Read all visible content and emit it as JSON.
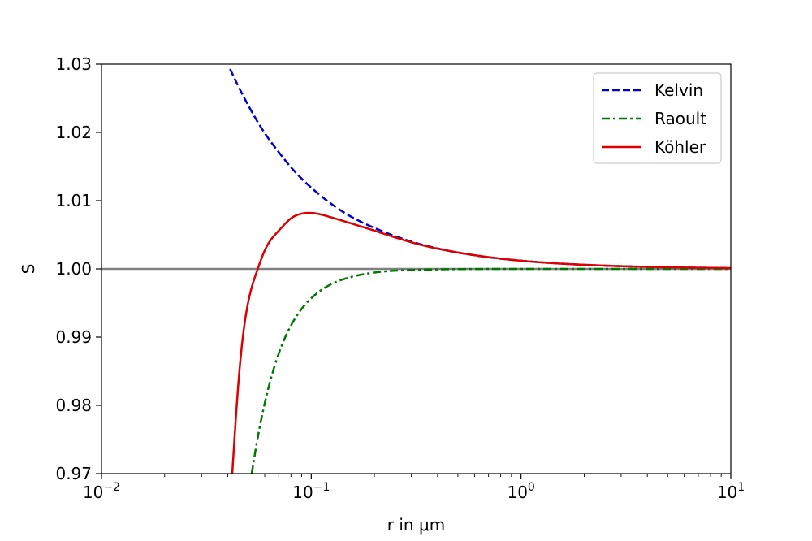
{
  "chart_data": {
    "type": "line",
    "title": "",
    "xlabel": "r in μm",
    "ylabel": "S",
    "xscale": "log",
    "xlim": [
      0.01,
      10
    ],
    "ylim": [
      0.97,
      1.03
    ],
    "grid": false,
    "legend_position": "top-right",
    "x_ticks": [
      {
        "value": 0.01,
        "base": "10",
        "exp": "−2"
      },
      {
        "value": 0.1,
        "base": "10",
        "exp": "−1"
      },
      {
        "value": 1,
        "base": "10",
        "exp": "0"
      },
      {
        "value": 10,
        "base": "10",
        "exp": "1"
      }
    ],
    "y_ticks": [
      {
        "value": 0.97,
        "label": "0.97"
      },
      {
        "value": 0.98,
        "label": "0.98"
      },
      {
        "value": 0.99,
        "label": "0.99"
      },
      {
        "value": 1.0,
        "label": "1.00"
      },
      {
        "value": 1.01,
        "label": "1.01"
      },
      {
        "value": 1.02,
        "label": "1.02"
      },
      {
        "value": 1.03,
        "label": "1.03"
      }
    ],
    "reference_line": {
      "y": 1.0,
      "color": "#808080"
    },
    "series": [
      {
        "name": "Kelvin",
        "color": "#0000cc",
        "style": "dashed",
        "x": [
          0.041,
          0.045,
          0.05,
          0.06,
          0.07,
          0.08,
          0.1,
          0.12,
          0.15,
          0.2,
          0.3,
          0.5,
          0.7,
          1,
          2,
          3,
          5,
          7,
          10
        ],
        "y": [
          1.0293,
          1.0267,
          1.024,
          1.0199,
          1.0171,
          1.0149,
          1.0119,
          1.0099,
          1.0079,
          1.006,
          1.004,
          1.0024,
          1.0017,
          1.0012,
          1.0006,
          1.0004,
          1.00024,
          1.00017,
          1.00012
        ]
      },
      {
        "name": "Raoult",
        "color": "#007700",
        "style": "dashdot",
        "x": [
          0.052,
          0.055,
          0.06,
          0.07,
          0.08,
          0.1,
          0.12,
          0.15,
          0.2,
          0.3,
          0.5,
          1,
          2,
          5,
          10
        ],
        "y": [
          0.97,
          0.9745,
          0.9803,
          0.9876,
          0.9917,
          0.9957,
          0.9975,
          0.9987,
          0.99947,
          0.99984,
          0.99997,
          1.0,
          1.0,
          1.0,
          1.0
        ]
      },
      {
        "name": "Köhler",
        "color": "#dd0000",
        "style": "solid",
        "x": [
          0.042,
          0.045,
          0.05,
          0.055,
          0.06,
          0.07,
          0.08,
          0.09,
          0.1,
          0.12,
          0.15,
          0.2,
          0.3,
          0.5,
          1,
          2,
          5,
          10
        ],
        "y": [
          0.97,
          0.9835,
          0.9951,
          0.9996,
          1.0027,
          1.0056,
          1.0074,
          1.0081,
          1.0082,
          1.0077,
          1.0068,
          1.0056,
          1.0039,
          1.0024,
          1.0012,
          1.0006,
          1.00024,
          1.00012
        ]
      }
    ]
  }
}
